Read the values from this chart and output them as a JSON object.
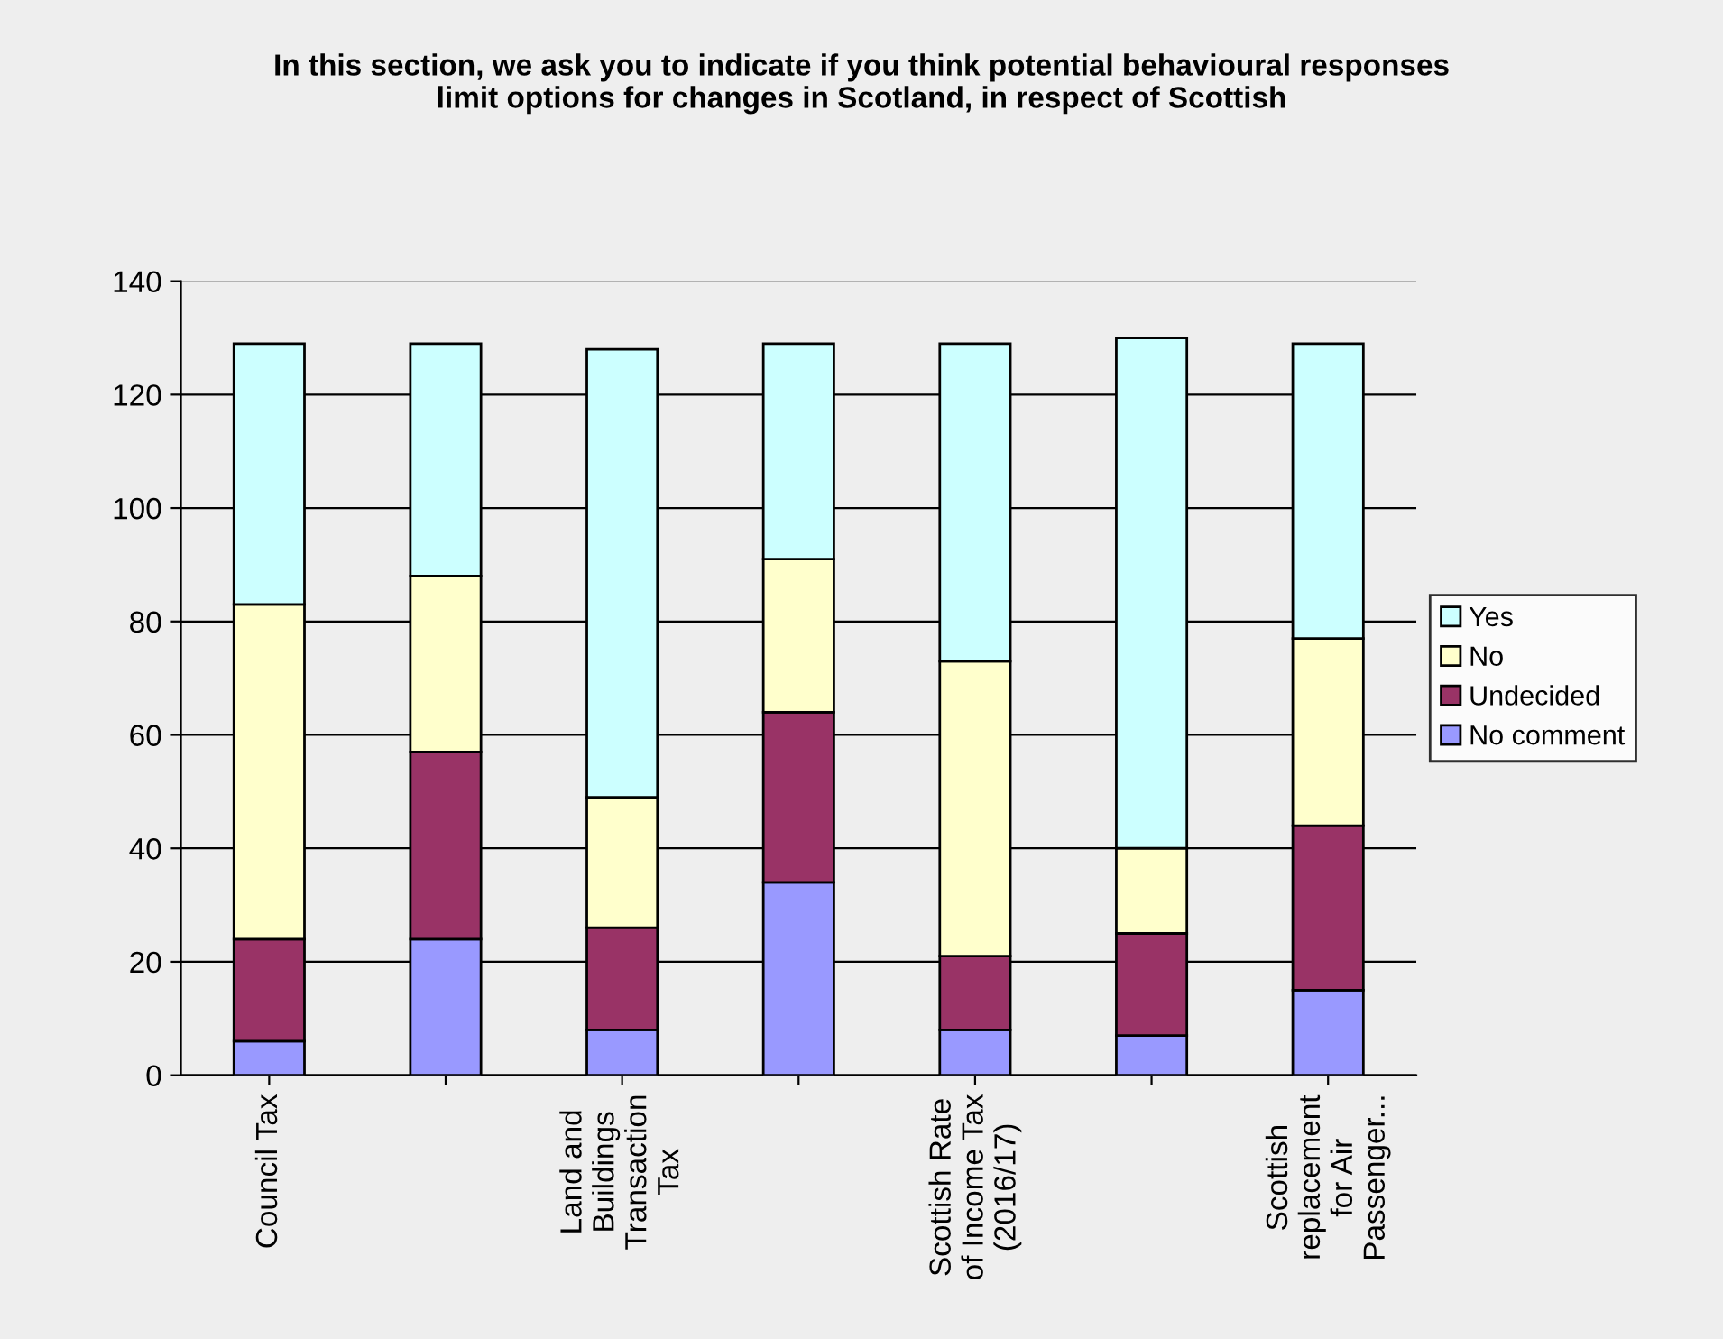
{
  "chart_data": {
    "type": "bar",
    "stacked": true,
    "title": "In this section, we ask you to indicate if you think potential behavioural responses\nlimit options for changes in Scotland, in respect of Scottish",
    "categories": [
      "Council Tax",
      null,
      "Land and\nBuildings\nTransaction\nTax",
      null,
      "Scottish Rate\nof Income Tax\n(2016/17)",
      null,
      "Scottish\nreplacement\nfor Air\nPassenger..."
    ],
    "series": [
      {
        "name": "No comment",
        "color": "#9999ff",
        "values": [
          6,
          24,
          8,
          34,
          8,
          7,
          15
        ]
      },
      {
        "name": "Undecided",
        "color": "#993366",
        "values": [
          18,
          33,
          18,
          30,
          13,
          18,
          29
        ]
      },
      {
        "name": "No",
        "color": "#ffffcc",
        "values": [
          59,
          31,
          23,
          27,
          52,
          15,
          33
        ]
      },
      {
        "name": "Yes",
        "color": "#ccffff",
        "values": [
          46,
          41,
          79,
          38,
          56,
          90,
          52
        ]
      }
    ],
    "ylim": [
      0,
      140
    ],
    "yticks": [
      0,
      20,
      40,
      60,
      80,
      100,
      120,
      140
    ],
    "grid": "y",
    "legend": "right"
  }
}
